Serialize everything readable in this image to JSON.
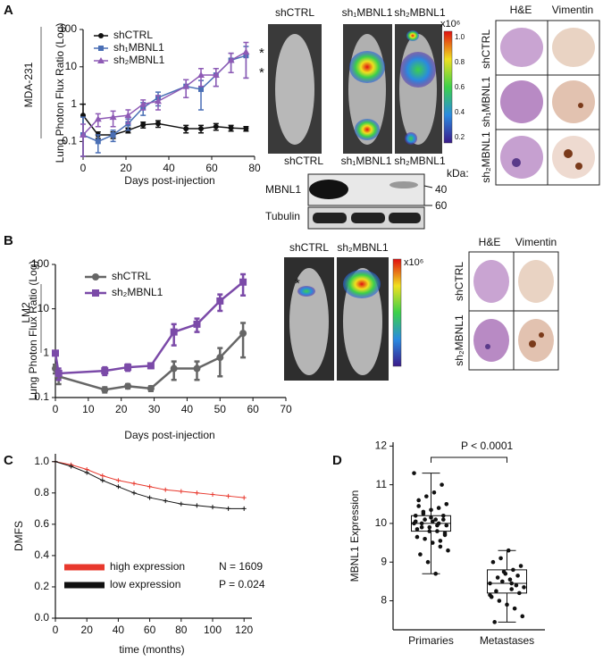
{
  "panel_labels": [
    "A",
    "B",
    "C",
    "D"
  ],
  "cell_lines": [
    "MDA-231",
    "LM2"
  ],
  "imaging_a": {
    "labels": [
      "shCTRL",
      "sh₁MBNL1",
      "sh₂MBNL1"
    ],
    "colorbar_unit": "x10⁶",
    "colorbar_ticks": [
      "1.0",
      "0.8",
      "0.6",
      "0.4",
      "0.2"
    ]
  },
  "blot": {
    "lanes": [
      "shCTRL",
      "sh₁MBNL1",
      "sh₂MBNL1"
    ],
    "unit": "kDa:",
    "rows": [
      "MBNL1",
      "Tubulin"
    ],
    "markers": [
      "40",
      "60"
    ]
  },
  "histology_a": {
    "columns": [
      "H&E",
      "Vimentin"
    ],
    "rows": [
      "shCTRL",
      "sh₁MBNL1",
      "sh₂MBNL1"
    ]
  },
  "imaging_b": {
    "labels": [
      "shCTRL",
      "sh₂MBNL1"
    ],
    "colorbar_unit": "x10⁶"
  },
  "histology_b": {
    "columns": [
      "H&E",
      "Vimentin"
    ],
    "rows": [
      "shCTRL",
      "sh₂MBNL1"
    ]
  },
  "chart_data": [
    {
      "type": "line",
      "x_label": "Days post-injection",
      "y_label": "Lung Photon Flux Ratio (Log)",
      "yscale": "log",
      "x": [
        0,
        7,
        14,
        21,
        28,
        35,
        48,
        55,
        62,
        69,
        76
      ],
      "series": [
        {
          "name": "shCTRL",
          "color": "#111111",
          "marker": "circle",
          "values": [
            0.5,
            0.15,
            0.15,
            0.2,
            0.28,
            0.3,
            0.22,
            0.22,
            0.25,
            0.23,
            0.22
          ],
          "errors": [
            0.5,
            0.03,
            0.03,
            0.03,
            0.05,
            0.06,
            0.05,
            0.05,
            0.05,
            0.04,
            0.03
          ]
        },
        {
          "name": "sh₁MBNL1",
          "color": "#4a6fb5",
          "marker": "square",
          "values": [
            0.15,
            0.1,
            0.15,
            0.3,
            0.8,
            1.5,
            3,
            2.5,
            6,
            15,
            20
          ],
          "errors": [
            0.3,
            0.05,
            0.05,
            0.1,
            0.3,
            0.6,
            1.5,
            1.8,
            3,
            8,
            15
          ]
        },
        {
          "name": "sh₂MBNL1",
          "color": "#8e5ab5",
          "marker": "triangle",
          "values": [
            0.15,
            0.4,
            0.45,
            0.5,
            1,
            1.2,
            3,
            6,
            6,
            15,
            25
          ],
          "errors": [
            0.14,
            0.15,
            0.2,
            0.2,
            0.3,
            0.5,
            1.5,
            3,
            3,
            8,
            20
          ]
        }
      ],
      "xlim": [
        0,
        80
      ],
      "xticks": [
        0,
        20,
        40,
        60,
        80
      ],
      "ylim": [
        0.04,
        100
      ],
      "yticks": [
        0.1,
        1,
        10,
        100
      ],
      "annotations": [
        "*",
        "*"
      ]
    },
    {
      "type": "line",
      "x_label": "Days post-injection",
      "y_label": "Lung Photon Flux Ratio (Log)",
      "yscale": "log",
      "x": [
        0,
        1,
        15,
        22,
        29,
        36,
        43,
        50,
        57
      ],
      "series": [
        {
          "name": "shCTRL",
          "color": "#666666",
          "marker": "circle",
          "values": [
            0.45,
            0.3,
            0.15,
            0.18,
            0.16,
            0.45,
            0.45,
            0.8,
            2.8
          ],
          "errors": [
            0.1,
            0.1,
            0.02,
            0.02,
            0.02,
            0.2,
            0.2,
            0.5,
            2
          ]
        },
        {
          "name": "sh₂MBNL1",
          "color": "#7b4aa8",
          "marker": "square",
          "values": [
            1,
            0.35,
            0.4,
            0.48,
            0.52,
            3,
            4.5,
            15,
            40
          ],
          "errors": [
            0.1,
            0.1,
            0.08,
            0.08,
            0.06,
            1.5,
            1.5,
            6,
            20
          ]
        }
      ],
      "xlim": [
        0,
        70
      ],
      "xticks": [
        0,
        10,
        20,
        30,
        40,
        50,
        60,
        70
      ],
      "ylim": [
        0.1,
        100
      ],
      "yticks": [
        0.1,
        1,
        10,
        100
      ],
      "annotations": [
        "*"
      ]
    },
    {
      "type": "line",
      "x_label": "time (months)",
      "y_label": "DMFS",
      "x": [
        0,
        10,
        20,
        30,
        40,
        50,
        60,
        70,
        80,
        90,
        100,
        110,
        120
      ],
      "series": [
        {
          "name": "high expression",
          "color": "#e8382d",
          "marker": "plus",
          "values": [
            1.0,
            0.98,
            0.95,
            0.91,
            0.88,
            0.86,
            0.84,
            0.82,
            0.81,
            0.8,
            0.79,
            0.78,
            0.77
          ]
        },
        {
          "name": "low expression",
          "color": "#111111",
          "marker": "plus",
          "values": [
            1.0,
            0.97,
            0.93,
            0.88,
            0.84,
            0.8,
            0.77,
            0.75,
            0.73,
            0.72,
            0.71,
            0.7,
            0.7
          ]
        }
      ],
      "xlim": [
        0,
        125
      ],
      "xticks": [
        0,
        20,
        40,
        60,
        80,
        100,
        120
      ],
      "ylim": [
        0,
        1.05
      ],
      "yticks": [
        {
          "value": 0,
          "label": "0.0"
        },
        0.2,
        0.4,
        0.6,
        0.8,
        {
          "value": 1,
          "label": "1.0"
        }
      ],
      "annotations": [
        "N = 1609",
        "P = 0.024"
      ]
    },
    {
      "type": "box",
      "y_label": "MBNL1 Expression",
      "categories": [
        "Primaries",
        "Metastases"
      ],
      "boxes": [
        {
          "min": 8.7,
          "q1": 9.8,
          "median": 10.0,
          "q3": 10.2,
          "max": 11.3
        },
        {
          "min": 7.45,
          "q1": 8.2,
          "median": 8.45,
          "q3": 8.8,
          "max": 9.3
        }
      ],
      "points": [
        [
          10.0,
          10.1,
          9.9,
          10.2,
          9.8,
          10.05,
          9.95,
          10.3,
          9.7,
          10.15,
          9.85,
          10.4,
          9.6,
          10.5,
          9.5,
          10.6,
          9.4,
          10.7,
          9.3,
          10.8,
          9.2,
          11.0,
          9.0,
          11.3,
          8.7,
          10.0,
          10.1,
          9.9,
          10.2,
          9.8,
          10.25,
          9.75,
          10.35,
          9.65,
          10.0,
          10.1,
          9.95,
          10.05,
          10.45,
          9.55
        ],
        [
          8.45,
          8.3,
          8.6,
          8.2,
          8.7,
          8.1,
          8.8,
          8.0,
          8.9,
          7.9,
          9.0,
          7.8,
          9.1,
          7.6,
          9.3,
          7.45,
          8.4,
          8.5,
          8.35,
          8.55,
          8.25,
          8.65,
          8.75,
          8.15,
          8.45
        ]
      ],
      "ylim": [
        7.25,
        12.1
      ],
      "yticks": [
        8,
        9,
        10,
        11,
        12
      ],
      "annotations": [
        "P < 0.0001"
      ]
    }
  ]
}
